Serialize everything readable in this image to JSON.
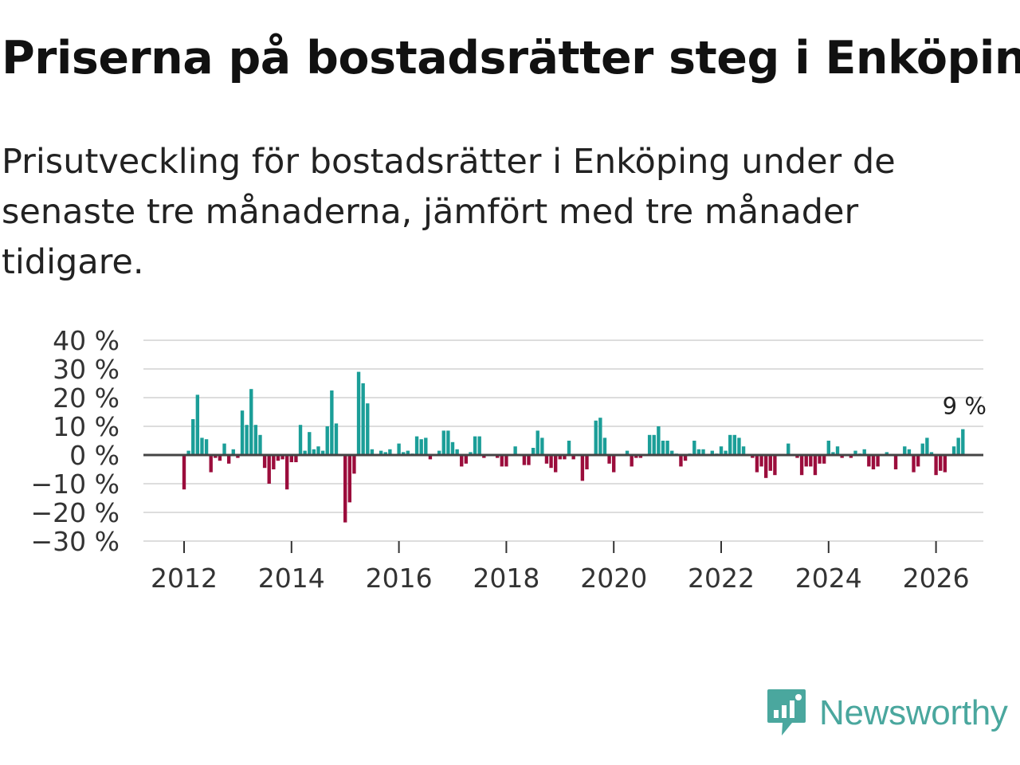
{
  "header": {
    "title": "Priserna på bostadsrätter steg i Enköping",
    "subtitle": "Prisutveckling för bostadsrätter i Enköping under de senaste tre månaderna, jämfört med tre månader tidigare."
  },
  "brand": {
    "name": "Newsworthy"
  },
  "colors": {
    "positive": "#1b9e98",
    "negative": "#9b0d3c",
    "grid": "#dddddd",
    "zero_line": "#444444",
    "brand": "#4aa79e"
  },
  "chart_data": {
    "type": "bar",
    "title": "Priserna på bostadsrätter steg i Enköping",
    "xlabel": "",
    "ylabel": "",
    "unit": "%",
    "ylim": [
      -30,
      40
    ],
    "y_ticks": [
      40,
      30,
      20,
      10,
      0,
      -10,
      -20,
      -30
    ],
    "y_tick_labels": [
      "40 %",
      "30 %",
      "20 %",
      "10 %",
      "0 %",
      "−10 %",
      "−20 %",
      "−30 %"
    ],
    "x_ticks": [
      2012,
      2014,
      2016,
      2018,
      2020,
      2022,
      2024,
      2026
    ],
    "x_tick_labels": [
      "2012",
      "2014",
      "2016",
      "2018",
      "2020",
      "2022",
      "2024",
      "2026"
    ],
    "start": {
      "year": 2012,
      "month": 1
    },
    "frequency": "monthly",
    "last_value_label": "9 %",
    "values": [
      -12,
      1.5,
      12.5,
      21,
      6,
      5.5,
      -6,
      -1,
      -2,
      4,
      -3,
      2,
      -1,
      15.5,
      10.5,
      23,
      10.5,
      7,
      -4.5,
      -10,
      -5,
      -2,
      -1.5,
      -12,
      -2.5,
      -2.5,
      10.5,
      1.5,
      8,
      2,
      3,
      1.5,
      10,
      22.5,
      11,
      0,
      -23.5,
      -16.5,
      -6.5,
      29,
      25,
      18,
      2,
      0,
      1.5,
      1,
      2,
      0,
      4,
      1,
      1.5,
      0.5,
      6.5,
      5.5,
      6,
      -1.5,
      0,
      1.5,
      8.5,
      8.5,
      4.5,
      2,
      -4,
      -3,
      1,
      6.5,
      6.5,
      -1,
      0,
      0,
      -1,
      -4,
      -4,
      0,
      3,
      0,
      -3.5,
      -3.5,
      2.5,
      8.5,
      6,
      -3,
      -4.5,
      -6,
      -1.5,
      -1.5,
      5,
      -1.5,
      0,
      -9,
      -5,
      0,
      12,
      13,
      6,
      -3,
      -6,
      0,
      0,
      1.5,
      -4,
      -1,
      -1,
      0,
      7,
      7,
      10,
      5,
      5,
      1.5,
      0.5,
      -4,
      -2,
      0.5,
      5,
      2,
      2,
      0,
      1.5,
      0.5,
      3,
      1.5,
      7,
      7,
      6,
      3,
      0,
      -1,
      -6,
      -4,
      -8,
      -5.5,
      -7,
      0,
      0,
      4,
      0,
      -1,
      -7,
      -4,
      -4,
      -7,
      -3,
      -3,
      5,
      1,
      3,
      -1,
      0,
      -1,
      1.5,
      0.5,
      2,
      -4,
      -5,
      -4,
      0,
      1,
      0,
      -5,
      0,
      3,
      2,
      -6,
      -4,
      4,
      6,
      1,
      -7,
      -5.5,
      -6,
      0,
      3,
      6,
      9
    ]
  }
}
